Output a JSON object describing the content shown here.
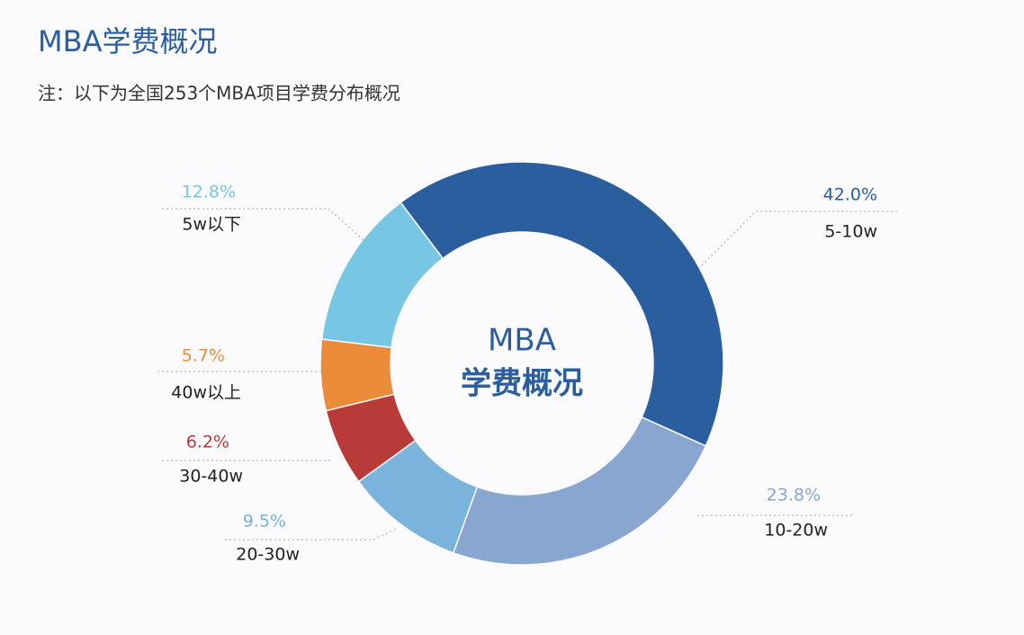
{
  "chart_data": {
    "type": "donut",
    "title": "MBA学费概况",
    "subtitle": "注：以下为全国253个MBA项目学费分布概况",
    "center_label": [
      "MBA",
      "学费概况"
    ],
    "categories": [
      "5-10w",
      "10-20w",
      "20-30w",
      "30-40w",
      "40w以上",
      "5w以下"
    ],
    "values": [
      42.0,
      23.8,
      9.5,
      6.2,
      5.7,
      12.8
    ],
    "value_labels": [
      "42.0%",
      "23.8%",
      "9.5%",
      "6.2%",
      "5.7%",
      "12.8%"
    ],
    "colors": [
      "#2b5e9e",
      "#88a6cf",
      "#7ab4dd",
      "#b83a39",
      "#ea8c3a",
      "#77c7e4"
    ]
  }
}
